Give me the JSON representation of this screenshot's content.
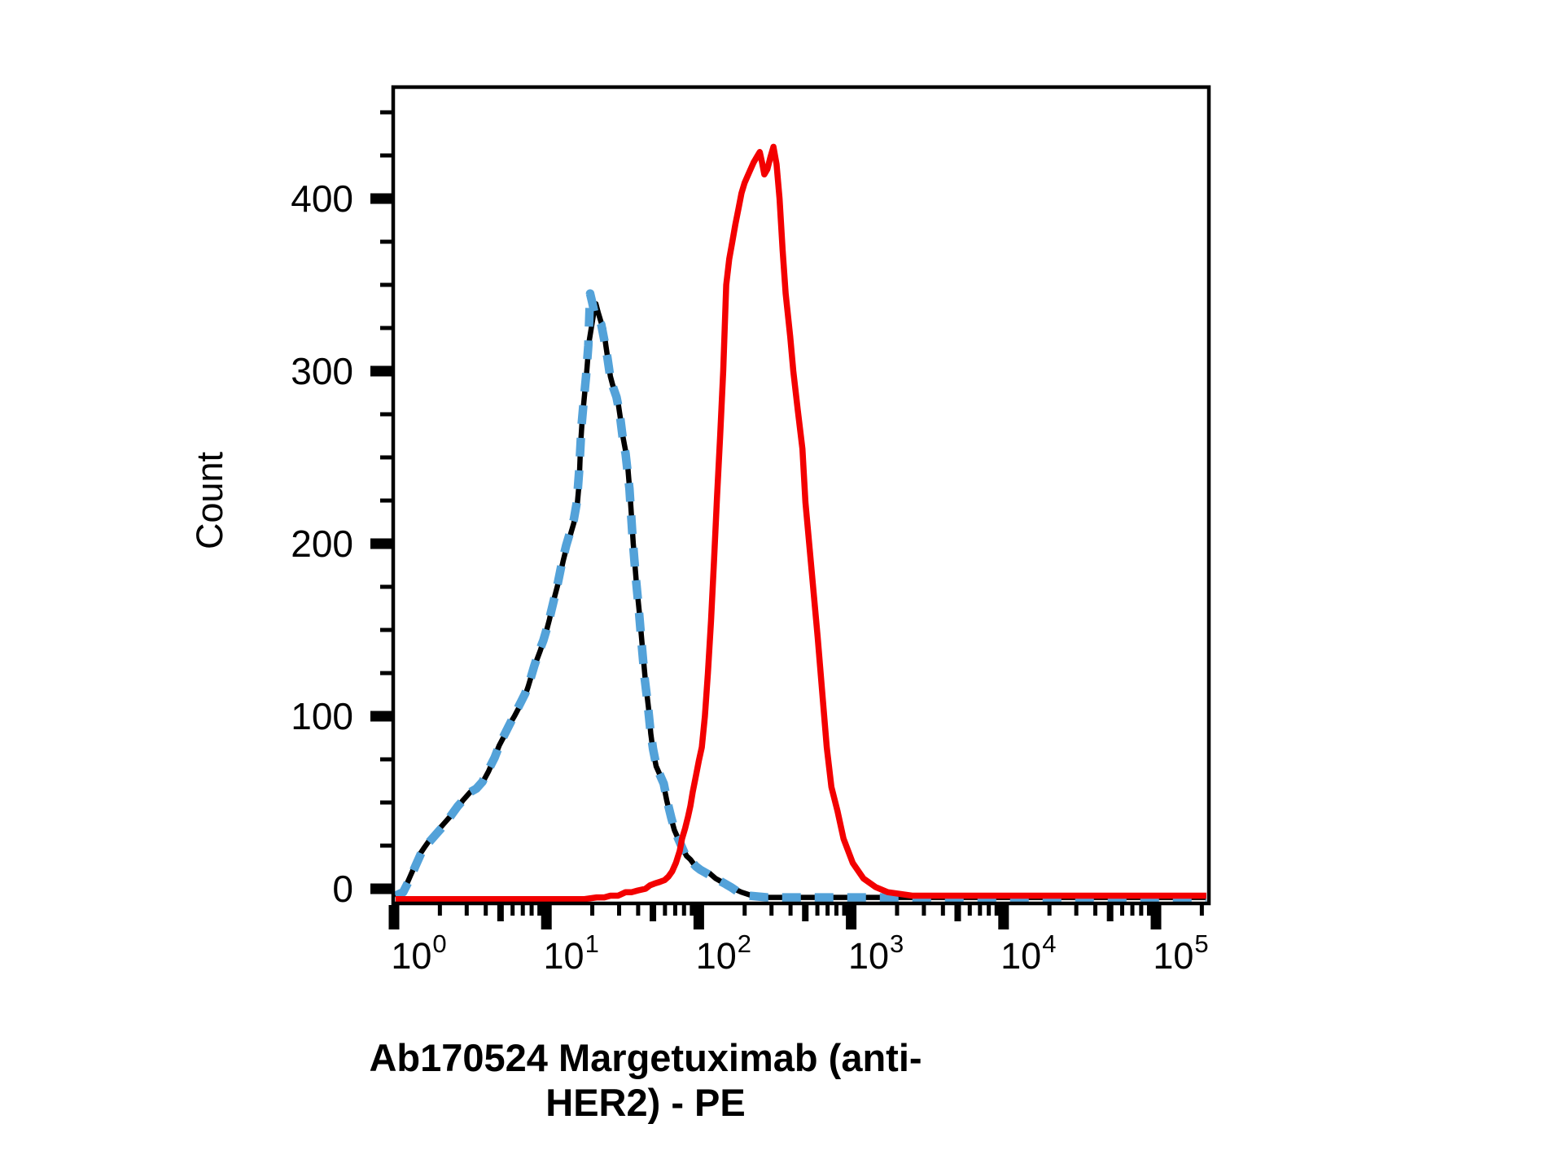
{
  "figure": {
    "background": "#FFFFFF"
  },
  "chart_data": {
    "type": "line",
    "subtype": "flow-cytometry-histogram-overlay",
    "title": "",
    "xlabel": "Ab170524 Margetuximab (anti-HER2) - PE",
    "ylabel": "Count",
    "grid": false,
    "legend": null,
    "x_axis": {
      "scale": "log10",
      "decades": [
        0,
        1,
        2,
        3,
        4,
        5
      ],
      "tick_label_base": "10",
      "tick_label_exponents": [
        "0",
        "1",
        "2",
        "3",
        "4",
        "5"
      ],
      "minor_digits": [
        2,
        3,
        4,
        5,
        6,
        7,
        8,
        9
      ],
      "range_log10": [
        0.0,
        5.35
      ]
    },
    "y_axis": {
      "scale": "linear",
      "major_ticks": [
        0,
        100,
        200,
        300,
        400
      ],
      "minor_step": 25,
      "range": [
        -9,
        464
      ]
    },
    "series": [
      {
        "name": "black-solid-curve",
        "color": "#000000",
        "width": 6.5,
        "dash": null,
        "points": [
          [
            0.01,
            -5
          ],
          [
            0.05,
            -3
          ],
          [
            0.08,
            2
          ],
          [
            0.11,
            8
          ],
          [
            0.14,
            14
          ],
          [
            0.17,
            20
          ],
          [
            0.2,
            24
          ],
          [
            0.24,
            29
          ],
          [
            0.28,
            33
          ],
          [
            0.33,
            38
          ],
          [
            0.38,
            43
          ],
          [
            0.42,
            47
          ],
          [
            0.45,
            51
          ],
          [
            0.47,
            53
          ],
          [
            0.5,
            56
          ],
          [
            0.53,
            58
          ],
          [
            0.56,
            59
          ],
          [
            0.59,
            63
          ],
          [
            0.62,
            68
          ],
          [
            0.65,
            74
          ],
          [
            0.69,
            83
          ],
          [
            0.72,
            88
          ],
          [
            0.75,
            94
          ],
          [
            0.79,
            100
          ],
          [
            0.82,
            105
          ],
          [
            0.86,
            112
          ],
          [
            0.88,
            117
          ],
          [
            0.91,
            126
          ],
          [
            0.93,
            131
          ],
          [
            0.96,
            138
          ],
          [
            0.99,
            146
          ],
          [
            1.02,
            156
          ],
          [
            1.05,
            168
          ],
          [
            1.08,
            178
          ],
          [
            1.11,
            190
          ],
          [
            1.13,
            197
          ],
          [
            1.16,
            206
          ],
          [
            1.18,
            212
          ],
          [
            1.2,
            220
          ],
          [
            1.215,
            235
          ],
          [
            1.225,
            258
          ],
          [
            1.235,
            272
          ],
          [
            1.25,
            286
          ],
          [
            1.265,
            300
          ],
          [
            1.28,
            317
          ],
          [
            1.3,
            328
          ],
          [
            1.315,
            336
          ],
          [
            1.325,
            339
          ],
          [
            1.34,
            334
          ],
          [
            1.36,
            328
          ],
          [
            1.375,
            325
          ],
          [
            1.39,
            315
          ],
          [
            1.405,
            306
          ],
          [
            1.42,
            297
          ],
          [
            1.435,
            292
          ],
          [
            1.455,
            287
          ],
          [
            1.47,
            282
          ],
          [
            1.485,
            273
          ],
          [
            1.5,
            263
          ],
          [
            1.515,
            256
          ],
          [
            1.53,
            249
          ],
          [
            1.55,
            227
          ],
          [
            1.57,
            200
          ],
          [
            1.59,
            178
          ],
          [
            1.61,
            160
          ],
          [
            1.63,
            140
          ],
          [
            1.65,
            120
          ],
          [
            1.67,
            105
          ],
          [
            1.685,
            90
          ],
          [
            1.7,
            80
          ],
          [
            1.72,
            71
          ],
          [
            1.745,
            66
          ],
          [
            1.77,
            60
          ],
          [
            1.79,
            51
          ],
          [
            1.815,
            42
          ],
          [
            1.84,
            34
          ],
          [
            1.865,
            29
          ],
          [
            1.89,
            24
          ],
          [
            1.92,
            19
          ],
          [
            1.945,
            17
          ],
          [
            1.97,
            14
          ],
          [
            2.0,
            12
          ],
          [
            2.035,
            10
          ],
          [
            2.07,
            9
          ],
          [
            2.11,
            6
          ],
          [
            2.15,
            4
          ],
          [
            2.19,
            2
          ],
          [
            2.23,
            0
          ],
          [
            2.28,
            -2
          ],
          [
            2.35,
            -4
          ],
          [
            2.45,
            -5
          ],
          [
            2.7,
            -5
          ],
          [
            3.1,
            -5
          ],
          [
            3.6,
            -5
          ],
          [
            4.2,
            -5
          ],
          [
            4.8,
            -5
          ],
          [
            5.33,
            -5
          ]
        ]
      },
      {
        "name": "blue-dashed-curve",
        "color": "#53A2D9",
        "width": 10.5,
        "dash": [
          23,
          17
        ],
        "points": [
          [
            0.01,
            -4
          ],
          [
            0.06,
            -2
          ],
          [
            0.1,
            5
          ],
          [
            0.14,
            13
          ],
          [
            0.18,
            21
          ],
          [
            0.22,
            26
          ],
          [
            0.27,
            31
          ],
          [
            0.32,
            36
          ],
          [
            0.37,
            42
          ],
          [
            0.42,
            48
          ],
          [
            0.46,
            52
          ],
          [
            0.5,
            56
          ],
          [
            0.54,
            58
          ],
          [
            0.58,
            62
          ],
          [
            0.62,
            69
          ],
          [
            0.66,
            76
          ],
          [
            0.7,
            85
          ],
          [
            0.74,
            92
          ],
          [
            0.78,
            99
          ],
          [
            0.82,
            106
          ],
          [
            0.86,
            113
          ],
          [
            0.89,
            120
          ],
          [
            0.92,
            129
          ],
          [
            0.95,
            137
          ],
          [
            0.98,
            144
          ],
          [
            1.01,
            153
          ],
          [
            1.04,
            164
          ],
          [
            1.07,
            175
          ],
          [
            1.1,
            188
          ],
          [
            1.13,
            199
          ],
          [
            1.16,
            208
          ],
          [
            1.18,
            214
          ],
          [
            1.2,
            224
          ],
          [
            1.215,
            242
          ],
          [
            1.23,
            268
          ],
          [
            1.245,
            283
          ],
          [
            1.26,
            297
          ],
          [
            1.275,
            315
          ],
          [
            1.287,
            345
          ],
          [
            1.3,
            340
          ],
          [
            1.32,
            332
          ],
          [
            1.34,
            330
          ],
          [
            1.36,
            327
          ],
          [
            1.38,
            318
          ],
          [
            1.4,
            308
          ],
          [
            1.42,
            296
          ],
          [
            1.44,
            290
          ],
          [
            1.46,
            285
          ],
          [
            1.48,
            276
          ],
          [
            1.5,
            262
          ],
          [
            1.52,
            252
          ],
          [
            1.545,
            232
          ],
          [
            1.565,
            204
          ],
          [
            1.585,
            182
          ],
          [
            1.605,
            163
          ],
          [
            1.625,
            142
          ],
          [
            1.645,
            122
          ],
          [
            1.665,
            107
          ],
          [
            1.682,
            92
          ],
          [
            1.7,
            81
          ],
          [
            1.72,
            72
          ],
          [
            1.74,
            67
          ],
          [
            1.77,
            61
          ],
          [
            1.795,
            50
          ],
          [
            1.82,
            41
          ],
          [
            1.845,
            33
          ],
          [
            1.87,
            28
          ],
          [
            1.895,
            23
          ],
          [
            1.92,
            18
          ],
          [
            1.95,
            16
          ],
          [
            1.98,
            13
          ],
          [
            2.01,
            11
          ],
          [
            2.05,
            9
          ],
          [
            2.09,
            7
          ],
          [
            2.13,
            5
          ],
          [
            2.17,
            3
          ],
          [
            2.21,
            1
          ],
          [
            2.26,
            -2
          ],
          [
            2.33,
            -4
          ],
          [
            2.45,
            -5
          ],
          [
            2.8,
            -5
          ],
          [
            3.2,
            -5
          ],
          [
            3.7,
            -5
          ],
          [
            4.3,
            -5
          ],
          [
            4.9,
            -5
          ],
          [
            5.33,
            -5
          ]
        ]
      },
      {
        "name": "red-solid-curve",
        "color": "#F30000",
        "width": 7.5,
        "dash": null,
        "points": [
          [
            0.01,
            -6
          ],
          [
            0.4,
            -6
          ],
          [
            0.8,
            -6
          ],
          [
            1.1,
            -6
          ],
          [
            1.25,
            -6
          ],
          [
            1.33,
            -5
          ],
          [
            1.38,
            -5
          ],
          [
            1.42,
            -4
          ],
          [
            1.47,
            -4
          ],
          [
            1.52,
            -2
          ],
          [
            1.56,
            -2
          ],
          [
            1.6,
            -1
          ],
          [
            1.65,
            0
          ],
          [
            1.68,
            2
          ],
          [
            1.71,
            3
          ],
          [
            1.745,
            4
          ],
          [
            1.775,
            5
          ],
          [
            1.8,
            7
          ],
          [
            1.825,
            10
          ],
          [
            1.85,
            15
          ],
          [
            1.875,
            22
          ],
          [
            1.89,
            29
          ],
          [
            1.91,
            35
          ],
          [
            1.93,
            42
          ],
          [
            1.945,
            48
          ],
          [
            1.96,
            56
          ],
          [
            1.98,
            65
          ],
          [
            2.0,
            74
          ],
          [
            2.02,
            82
          ],
          [
            2.04,
            100
          ],
          [
            2.06,
            125
          ],
          [
            2.08,
            155
          ],
          [
            2.1,
            190
          ],
          [
            2.12,
            228
          ],
          [
            2.14,
            262
          ],
          [
            2.16,
            300
          ],
          [
            2.18,
            350
          ],
          [
            2.2,
            365
          ],
          [
            2.22,
            375
          ],
          [
            2.24,
            385
          ],
          [
            2.26,
            394
          ],
          [
            2.28,
            403
          ],
          [
            2.3,
            409
          ],
          [
            2.32,
            413
          ],
          [
            2.34,
            417
          ],
          [
            2.36,
            421
          ],
          [
            2.38,
            424
          ],
          [
            2.4,
            427
          ],
          [
            2.415,
            421
          ],
          [
            2.43,
            414
          ],
          [
            2.45,
            417
          ],
          [
            2.47,
            424
          ],
          [
            2.49,
            430
          ],
          [
            2.51,
            420
          ],
          [
            2.53,
            400
          ],
          [
            2.55,
            370
          ],
          [
            2.57,
            345
          ],
          [
            2.6,
            320
          ],
          [
            2.62,
            300
          ],
          [
            2.65,
            277
          ],
          [
            2.68,
            255
          ],
          [
            2.7,
            224
          ],
          [
            2.74,
            185
          ],
          [
            2.78,
            146
          ],
          [
            2.81,
            114
          ],
          [
            2.84,
            82
          ],
          [
            2.87,
            59
          ],
          [
            2.91,
            45
          ],
          [
            2.95,
            29
          ],
          [
            3.01,
            15
          ],
          [
            3.08,
            6
          ],
          [
            3.16,
            1
          ],
          [
            3.24,
            -2
          ],
          [
            3.4,
            -4
          ],
          [
            3.7,
            -4
          ],
          [
            4.0,
            -4
          ],
          [
            4.4,
            -4
          ],
          [
            4.8,
            -4
          ],
          [
            5.33,
            -4
          ]
        ]
      }
    ]
  }
}
